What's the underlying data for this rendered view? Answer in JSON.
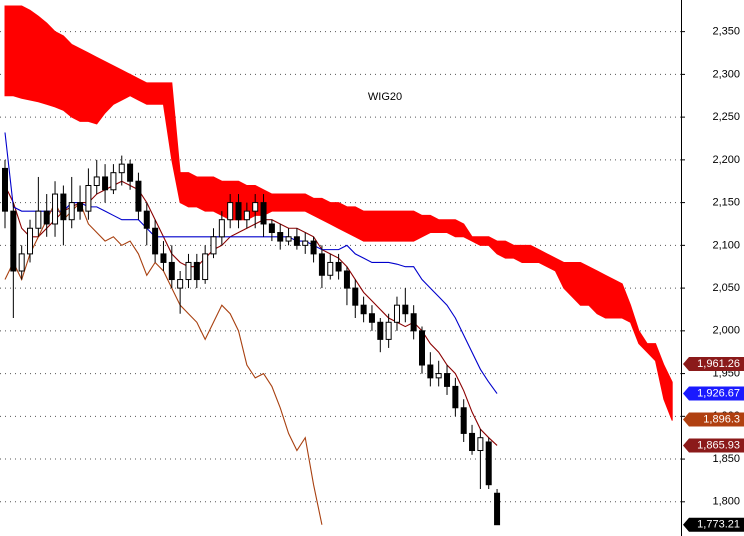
{
  "chart_data": {
    "type": "candlestick",
    "title": "WIG20",
    "ylim": [
      1760,
      2387
    ],
    "yticks": [
      {
        "value": 1800,
        "label": "1,800"
      },
      {
        "value": 1850,
        "label": "1,850"
      },
      {
        "value": 1900,
        "label": "1,900"
      },
      {
        "value": 1950,
        "label": "1,950"
      },
      {
        "value": 2000,
        "label": "2,000"
      },
      {
        "value": 2050,
        "label": "2,050"
      },
      {
        "value": 2100,
        "label": "2,100"
      },
      {
        "value": 2150,
        "label": "2,150"
      },
      {
        "value": 2200,
        "label": "2,200"
      },
      {
        "value": 2250,
        "label": "2,250"
      },
      {
        "value": 2300,
        "label": "2,300"
      },
      {
        "value": 2350,
        "label": "2,350"
      }
    ],
    "grid": true,
    "candles": {
      "open": [
        2190,
        2140,
        2070,
        2090,
        2120,
        2140,
        2125,
        2160,
        2130,
        2150,
        2140,
        2170,
        2180,
        2165,
        2185,
        2195,
        2175,
        2140,
        2120,
        2090,
        2080,
        2050,
        2060,
        2080,
        2060,
        2090,
        2110,
        2130,
        2150,
        2130,
        2140,
        2150,
        2125,
        2115,
        2105,
        2110,
        2100,
        2105,
        2090,
        2065,
        2080,
        2070,
        2050,
        2030,
        2020,
        2010,
        1990,
        2010,
        2030,
        2020,
        2000,
        1960,
        1945,
        1950,
        1935,
        1910,
        1880,
        1860,
        1870,
        1810
      ],
      "high": [
        2200,
        2150,
        2100,
        2130,
        2180,
        2160,
        2175,
        2170,
        2180,
        2170,
        2190,
        2200,
        2195,
        2195,
        2205,
        2200,
        2185,
        2150,
        2130,
        2105,
        2100,
        2070,
        2090,
        2090,
        2100,
        2120,
        2140,
        2160,
        2160,
        2150,
        2160,
        2160,
        2130,
        2125,
        2120,
        2120,
        2115,
        2110,
        2100,
        2090,
        2090,
        2075,
        2060,
        2040,
        2030,
        2015,
        2020,
        2040,
        2050,
        2030,
        2005,
        1975,
        1965,
        1960,
        1945,
        1920,
        1890,
        1885,
        1875,
        1815
      ],
      "low": [
        2120,
        2015,
        2060,
        2080,
        2110,
        2110,
        2110,
        2100,
        2120,
        2130,
        2130,
        2160,
        2150,
        2160,
        2170,
        2165,
        2130,
        2100,
        2080,
        2070,
        2050,
        2020,
        2050,
        2050,
        2055,
        2085,
        2100,
        2120,
        2120,
        2120,
        2120,
        2110,
        2105,
        2095,
        2100,
        2095,
        2090,
        2080,
        2050,
        2060,
        2060,
        2030,
        2015,
        2010,
        2000,
        1975,
        1980,
        2000,
        2010,
        1990,
        1950,
        1935,
        1935,
        1925,
        1900,
        1870,
        1855,
        1815,
        1815,
        1773.21
      ],
      "close": [
        2140,
        2070,
        2090,
        2120,
        2140,
        2125,
        2160,
        2130,
        2150,
        2140,
        2170,
        2180,
        2165,
        2185,
        2195,
        2175,
        2140,
        2120,
        2090,
        2080,
        2060,
        2060,
        2080,
        2060,
        2090,
        2110,
        2130,
        2150,
        2130,
        2140,
        2150,
        2125,
        2115,
        2105,
        2110,
        2100,
        2105,
        2090,
        2065,
        2080,
        2070,
        2050,
        2030,
        2020,
        2010,
        1990,
        2010,
        2030,
        2020,
        2000,
        1960,
        1945,
        1950,
        1935,
        1910,
        1880,
        1860,
        1875,
        1820,
        1773.21
      ]
    },
    "lines": [
      {
        "color": "#8b0000",
        "values": [
          2170,
          2150,
          2120,
          2110,
          2110,
          2120,
          2130,
          2140,
          2145,
          2150,
          2150,
          2160,
          2165,
          2170,
          2175,
          2170,
          2165,
          2150,
          2130,
          2110,
          2090,
          2080,
          2075,
          2075,
          2085,
          2095,
          2100,
          2110,
          2115,
          2120,
          2125,
          2130,
          2130,
          2125,
          2120,
          2120,
          2115,
          2110,
          2095,
          2090,
          2085,
          2075,
          2060,
          2045,
          2035,
          2025,
          2015,
          2010,
          2005,
          2010,
          2000,
          1985,
          1975,
          1960,
          1950,
          1930,
          1905,
          1885,
          1875,
          1865.93
        ]
      },
      {
        "color": "#0000cc",
        "values": [
          2232,
          2145,
          2140,
          2140,
          2140,
          2140,
          2140,
          2140,
          2150,
          2150,
          2145,
          2145,
          2140,
          2135,
          2130,
          2130,
          2130,
          2120,
          2110,
          2110,
          2110,
          2110,
          2110,
          2110,
          2110,
          2110,
          2110,
          2110,
          2110,
          2110,
          2110,
          2110,
          2110,
          2110,
          2110,
          2105,
          2105,
          2100,
          2095,
          2095,
          2095,
          2100,
          2090,
          2085,
          2080,
          2080,
          2080,
          2078,
          2075,
          2075,
          2060,
          2050,
          2040,
          2030,
          2015,
          1995,
          1975,
          1955,
          1940,
          1926.67
        ]
      },
      {
        "color": "#a84010",
        "values": [
          2060,
          2080,
          2060,
          2090,
          2110,
          2130,
          2150,
          2130,
          2140,
          2150,
          2125,
          2115,
          2105,
          2110,
          2100,
          2105,
          2090,
          2065,
          2080,
          2070,
          2050,
          2030,
          2020,
          2010,
          1990,
          2010,
          2030,
          2020,
          2000,
          1960,
          1945,
          1950,
          1935,
          1910,
          1880,
          1860,
          1875,
          1820,
          1773.21
        ]
      }
    ],
    "cloud": {
      "color": "#ff0000",
      "span_a": [
        2380,
        2380,
        2380,
        2375,
        2368,
        2360,
        2350,
        2345,
        2335,
        2330,
        2325,
        2320,
        2315,
        2310,
        2305,
        2300,
        2295,
        2290,
        2290,
        2290,
        2290,
        2185,
        2185,
        2180,
        2180,
        2180,
        2175,
        2175,
        2175,
        2170,
        2170,
        2165,
        2160,
        2160,
        2160,
        2160,
        2160,
        2155,
        2155,
        2150,
        2150,
        2145,
        2145,
        2140,
        2140,
        2140,
        2140,
        2140,
        2140,
        2140,
        2135,
        2135,
        2130,
        2130,
        2130,
        2125,
        2110,
        2110,
        2110,
        2105,
        2105,
        2100,
        2100,
        2100,
        2095,
        2090,
        2085,
        2080,
        2080,
        2080,
        2075,
        2070,
        2065,
        2060,
        2055,
        2030,
        2000,
        1985,
        1985,
        1960,
        1940
      ],
      "span_b": [
        2275,
        2275,
        2272,
        2270,
        2268,
        2265,
        2262,
        2258,
        2250,
        2245,
        2245,
        2242,
        2255,
        2265,
        2270,
        2275,
        2270,
        2265,
        2265,
        2265,
        2200,
        2150,
        2145,
        2145,
        2140,
        2140,
        2135,
        2130,
        2130,
        2130,
        2135,
        2135,
        2140,
        2140,
        2140,
        2140,
        2140,
        2135,
        2130,
        2125,
        2120,
        2115,
        2110,
        2105,
        2105,
        2105,
        2105,
        2105,
        2105,
        2105,
        2110,
        2115,
        2115,
        2115,
        2110,
        2110,
        2105,
        2100,
        2100,
        2090,
        2085,
        2085,
        2080,
        2080,
        2080,
        2075,
        2070,
        2050,
        2040,
        2030,
        2030,
        2020,
        2015,
        2015,
        2015,
        2010,
        1985,
        1975,
        1965,
        1920,
        1895
      ]
    },
    "price_labels": [
      {
        "value": 1961.26,
        "label": "1,961.26",
        "color": "#8b1a1a"
      },
      {
        "value": 1926.67,
        "label": "1,926.67",
        "color": "#1a1aff"
      },
      {
        "value": 1896.3,
        "label": "1,896.3",
        "color": "#b04010"
      },
      {
        "value": 1865.93,
        "label": "1,865.93",
        "color": "#8b1a1a"
      },
      {
        "value": 1773.21,
        "label": "1,773.21",
        "color": "#000000"
      }
    ]
  }
}
